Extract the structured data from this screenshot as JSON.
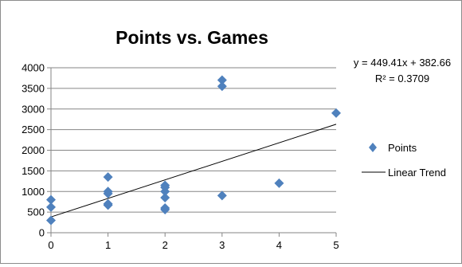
{
  "chart_data": {
    "type": "scatter",
    "title": "Points vs. Games",
    "xlabel": "",
    "ylabel": "",
    "xlim": [
      0,
      5
    ],
    "ylim": [
      0,
      4000
    ],
    "x_ticks": [
      "0",
      "1",
      "2",
      "3",
      "4",
      "5"
    ],
    "y_ticks": [
      "0",
      "500",
      "1000",
      "1500",
      "2000",
      "2500",
      "3000",
      "3500",
      "4000"
    ],
    "grid": "horizontal",
    "legend_position": "right",
    "series": [
      {
        "name": "Points",
        "marker": "diamond",
        "color": "#4f81bd",
        "points": [
          [
            0,
            300
          ],
          [
            0,
            620
          ],
          [
            0,
            800
          ],
          [
            1,
            670
          ],
          [
            1,
            700
          ],
          [
            1,
            950
          ],
          [
            1,
            1000
          ],
          [
            1,
            1350
          ],
          [
            2,
            560
          ],
          [
            2,
            600
          ],
          [
            2,
            850
          ],
          [
            2,
            1000
          ],
          [
            2,
            1100
          ],
          [
            2,
            1150
          ],
          [
            3,
            3700
          ],
          [
            3,
            3550
          ],
          [
            3,
            900
          ],
          [
            4,
            1200
          ],
          [
            5,
            2900
          ]
        ]
      }
    ],
    "trendline": {
      "name": "Linear Trend",
      "type": "linear",
      "slope": 449.41,
      "intercept": 382.66,
      "color": "#000000",
      "equation_text": "y = 449.41x + 382.66",
      "r2_text": "R² = 0.3709"
    }
  }
}
